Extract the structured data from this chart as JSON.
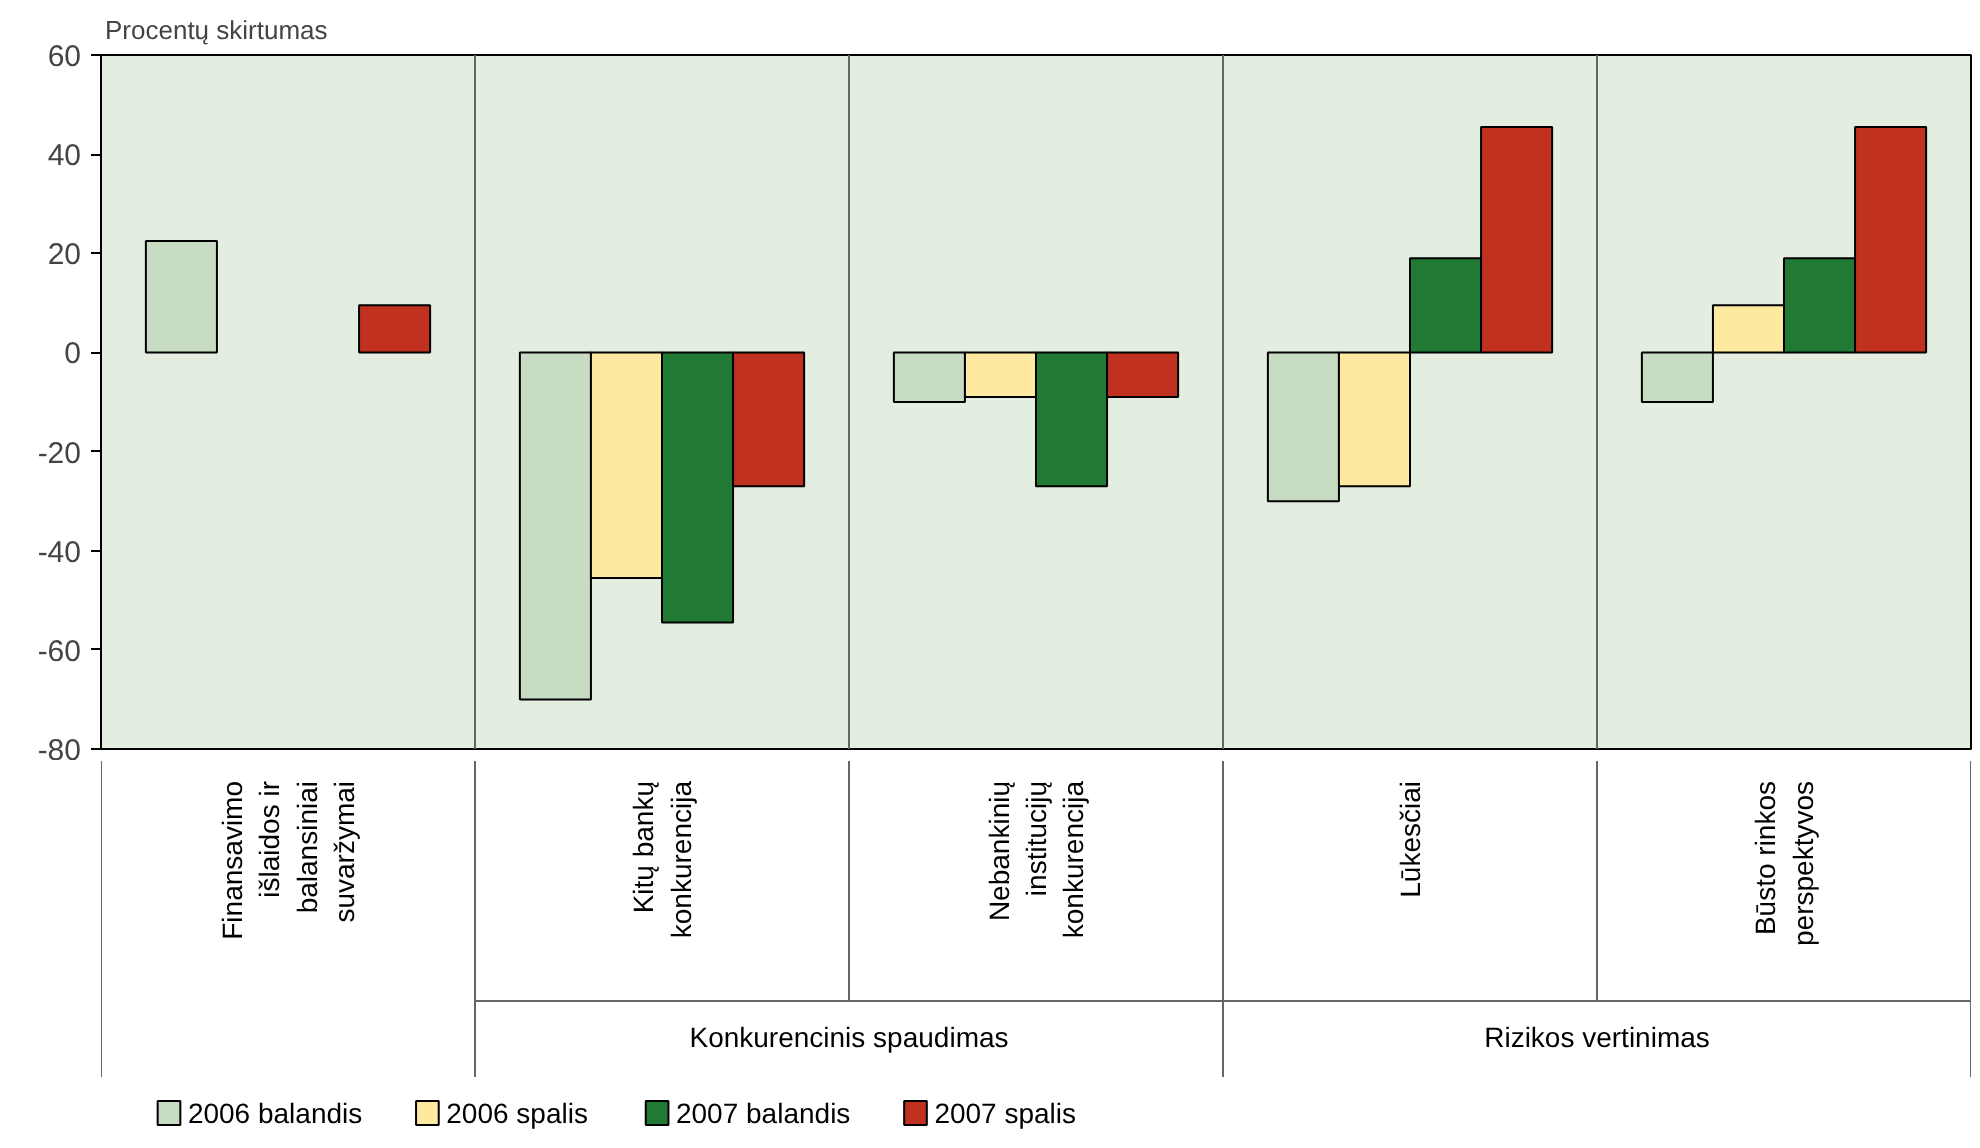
{
  "chart_data": {
    "type": "bar",
    "ylabel": "Procentų skirtumas",
    "categories": [
      "Finansavimo išlaidos ir balansiniai suvaržymai",
      "Kitų bankų konkurencija",
      "Nebankinių institucijų konkurencija",
      "Lūkesčiai",
      "Būsto rinkos perspektyvos"
    ],
    "series": [
      {
        "name": "2006 balandis",
        "color": "#c8dcc4",
        "values": [
          22.5,
          -70,
          -10,
          -30,
          -10
        ]
      },
      {
        "name": "2006 spalis",
        "color": "#fde9a0",
        "values": [
          null,
          -45.5,
          -9,
          -27,
          9.5
        ]
      },
      {
        "name": "2007 balandis",
        "color": "#217a34",
        "values": [
          null,
          -54.5,
          -27,
          19,
          19
        ]
      },
      {
        "name": "2007 spalis",
        "color": "#c0311f",
        "values": [
          9.5,
          -27,
          -9,
          45.5,
          45.5
        ]
      }
    ],
    "ylim": [
      -80,
      60
    ],
    "yticks": [
      -80,
      -60,
      -40,
      -20,
      0,
      20,
      40,
      60
    ],
    "grid": false,
    "legend": "bottom",
    "annotations": [
      "Konkurencinis spaudimas",
      "Rizikos vertinimas"
    ]
  }
}
